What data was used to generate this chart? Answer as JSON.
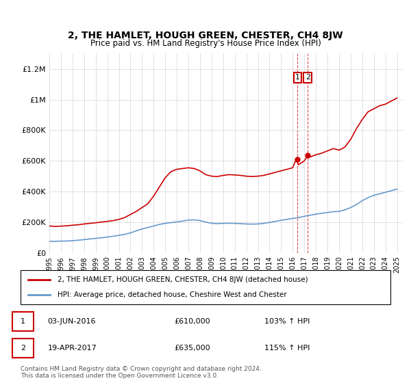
{
  "title": "2, THE HAMLET, HOUGH GREEN, CHESTER, CH4 8JW",
  "subtitle": "Price paid vs. HM Land Registry's House Price Index (HPI)",
  "ylabel_ticks": [
    "£0",
    "£200K",
    "£400K",
    "£600K",
    "£800K",
    "£1M",
    "£1.2M"
  ],
  "ytick_values": [
    0,
    200000,
    400000,
    600000,
    800000,
    1000000,
    1200000
  ],
  "ylim": [
    0,
    1300000
  ],
  "xlim_start": 1995.0,
  "xlim_end": 2025.5,
  "red_color": "#cc0000",
  "blue_color": "#6699cc",
  "dashed_red": "#cc0000",
  "legend_label1": "2, THE HAMLET, HOUGH GREEN, CHESTER, CH4 8JW (detached house)",
  "legend_label2": "HPI: Average price, detached house, Cheshire West and Chester",
  "annotation1_label": "1",
  "annotation1_date": "03-JUN-2016",
  "annotation1_price": "£610,000",
  "annotation1_hpi": "103% ↑ HPI",
  "annotation2_label": "2",
  "annotation2_date": "19-APR-2017",
  "annotation2_price": "£635,000",
  "annotation2_hpi": "115% ↑ HPI",
  "footer": "Contains HM Land Registry data © Crown copyright and database right 2024.\nThis data is licensed under the Open Government Licence v3.0.",
  "red_x": [
    1995.0,
    1995.5,
    1996.0,
    1996.5,
    1997.0,
    1997.5,
    1998.0,
    1998.5,
    1999.0,
    1999.5,
    2000.0,
    2000.5,
    2001.0,
    2001.5,
    2002.0,
    2002.5,
    2003.0,
    2003.5,
    2004.0,
    2004.5,
    2005.0,
    2005.5,
    2006.0,
    2006.5,
    2007.0,
    2007.5,
    2008.0,
    2008.5,
    2009.0,
    2009.5,
    2010.0,
    2010.5,
    2011.0,
    2011.5,
    2012.0,
    2012.5,
    2013.0,
    2013.5,
    2014.0,
    2014.5,
    2015.0,
    2015.5,
    2016.0,
    2016.3,
    2016.5,
    2017.0,
    2017.3,
    2017.5,
    2018.0,
    2018.5,
    2019.0,
    2019.5,
    2020.0,
    2020.5,
    2021.0,
    2021.5,
    2022.0,
    2022.5,
    2023.0,
    2023.5,
    2024.0,
    2024.5,
    2025.0
  ],
  "red_y": [
    175000,
    172000,
    174000,
    176000,
    180000,
    183000,
    188000,
    192000,
    196000,
    200000,
    205000,
    210000,
    218000,
    230000,
    250000,
    270000,
    295000,
    320000,
    370000,
    430000,
    490000,
    530000,
    545000,
    550000,
    555000,
    550000,
    535000,
    510000,
    500000,
    498000,
    505000,
    510000,
    508000,
    505000,
    500000,
    498000,
    500000,
    505000,
    515000,
    525000,
    535000,
    545000,
    555000,
    610000,
    575000,
    600000,
    635000,
    625000,
    640000,
    650000,
    665000,
    680000,
    670000,
    690000,
    740000,
    810000,
    870000,
    920000,
    940000,
    960000,
    970000,
    990000,
    1010000
  ],
  "blue_x": [
    1995.0,
    1995.5,
    1996.0,
    1996.5,
    1997.0,
    1997.5,
    1998.0,
    1998.5,
    1999.0,
    1999.5,
    2000.0,
    2000.5,
    2001.0,
    2001.5,
    2002.0,
    2002.5,
    2003.0,
    2003.5,
    2004.0,
    2004.5,
    2005.0,
    2005.5,
    2006.0,
    2006.5,
    2007.0,
    2007.5,
    2008.0,
    2008.5,
    2009.0,
    2009.5,
    2010.0,
    2010.5,
    2011.0,
    2011.5,
    2012.0,
    2012.5,
    2013.0,
    2013.5,
    2014.0,
    2014.5,
    2015.0,
    2015.5,
    2016.0,
    2016.5,
    2017.0,
    2017.5,
    2018.0,
    2018.5,
    2019.0,
    2019.5,
    2020.0,
    2020.5,
    2021.0,
    2021.5,
    2022.0,
    2022.5,
    2023.0,
    2023.5,
    2024.0,
    2024.5,
    2025.0
  ],
  "blue_y": [
    75000,
    75000,
    76000,
    77000,
    79000,
    82000,
    86000,
    90000,
    94000,
    98000,
    103000,
    108000,
    114000,
    120000,
    130000,
    143000,
    155000,
    165000,
    175000,
    185000,
    192000,
    197000,
    202000,
    207000,
    213000,
    215000,
    210000,
    200000,
    193000,
    190000,
    192000,
    193000,
    192000,
    190000,
    188000,
    187000,
    188000,
    192000,
    198000,
    205000,
    212000,
    218000,
    224000,
    230000,
    238000,
    245000,
    252000,
    258000,
    263000,
    268000,
    270000,
    280000,
    295000,
    315000,
    340000,
    360000,
    375000,
    385000,
    395000,
    405000,
    415000
  ],
  "point1_x": 2016.42,
  "point1_y": 610000,
  "point2_x": 2017.3,
  "point2_y": 635000,
  "vline1_x": 2016.42,
  "vline2_x": 2017.3,
  "xticks": [
    1995,
    1996,
    1997,
    1998,
    1999,
    2000,
    2001,
    2002,
    2003,
    2004,
    2005,
    2006,
    2007,
    2008,
    2009,
    2010,
    2011,
    2012,
    2013,
    2014,
    2015,
    2016,
    2017,
    2018,
    2019,
    2020,
    2021,
    2022,
    2023,
    2024,
    2025
  ]
}
